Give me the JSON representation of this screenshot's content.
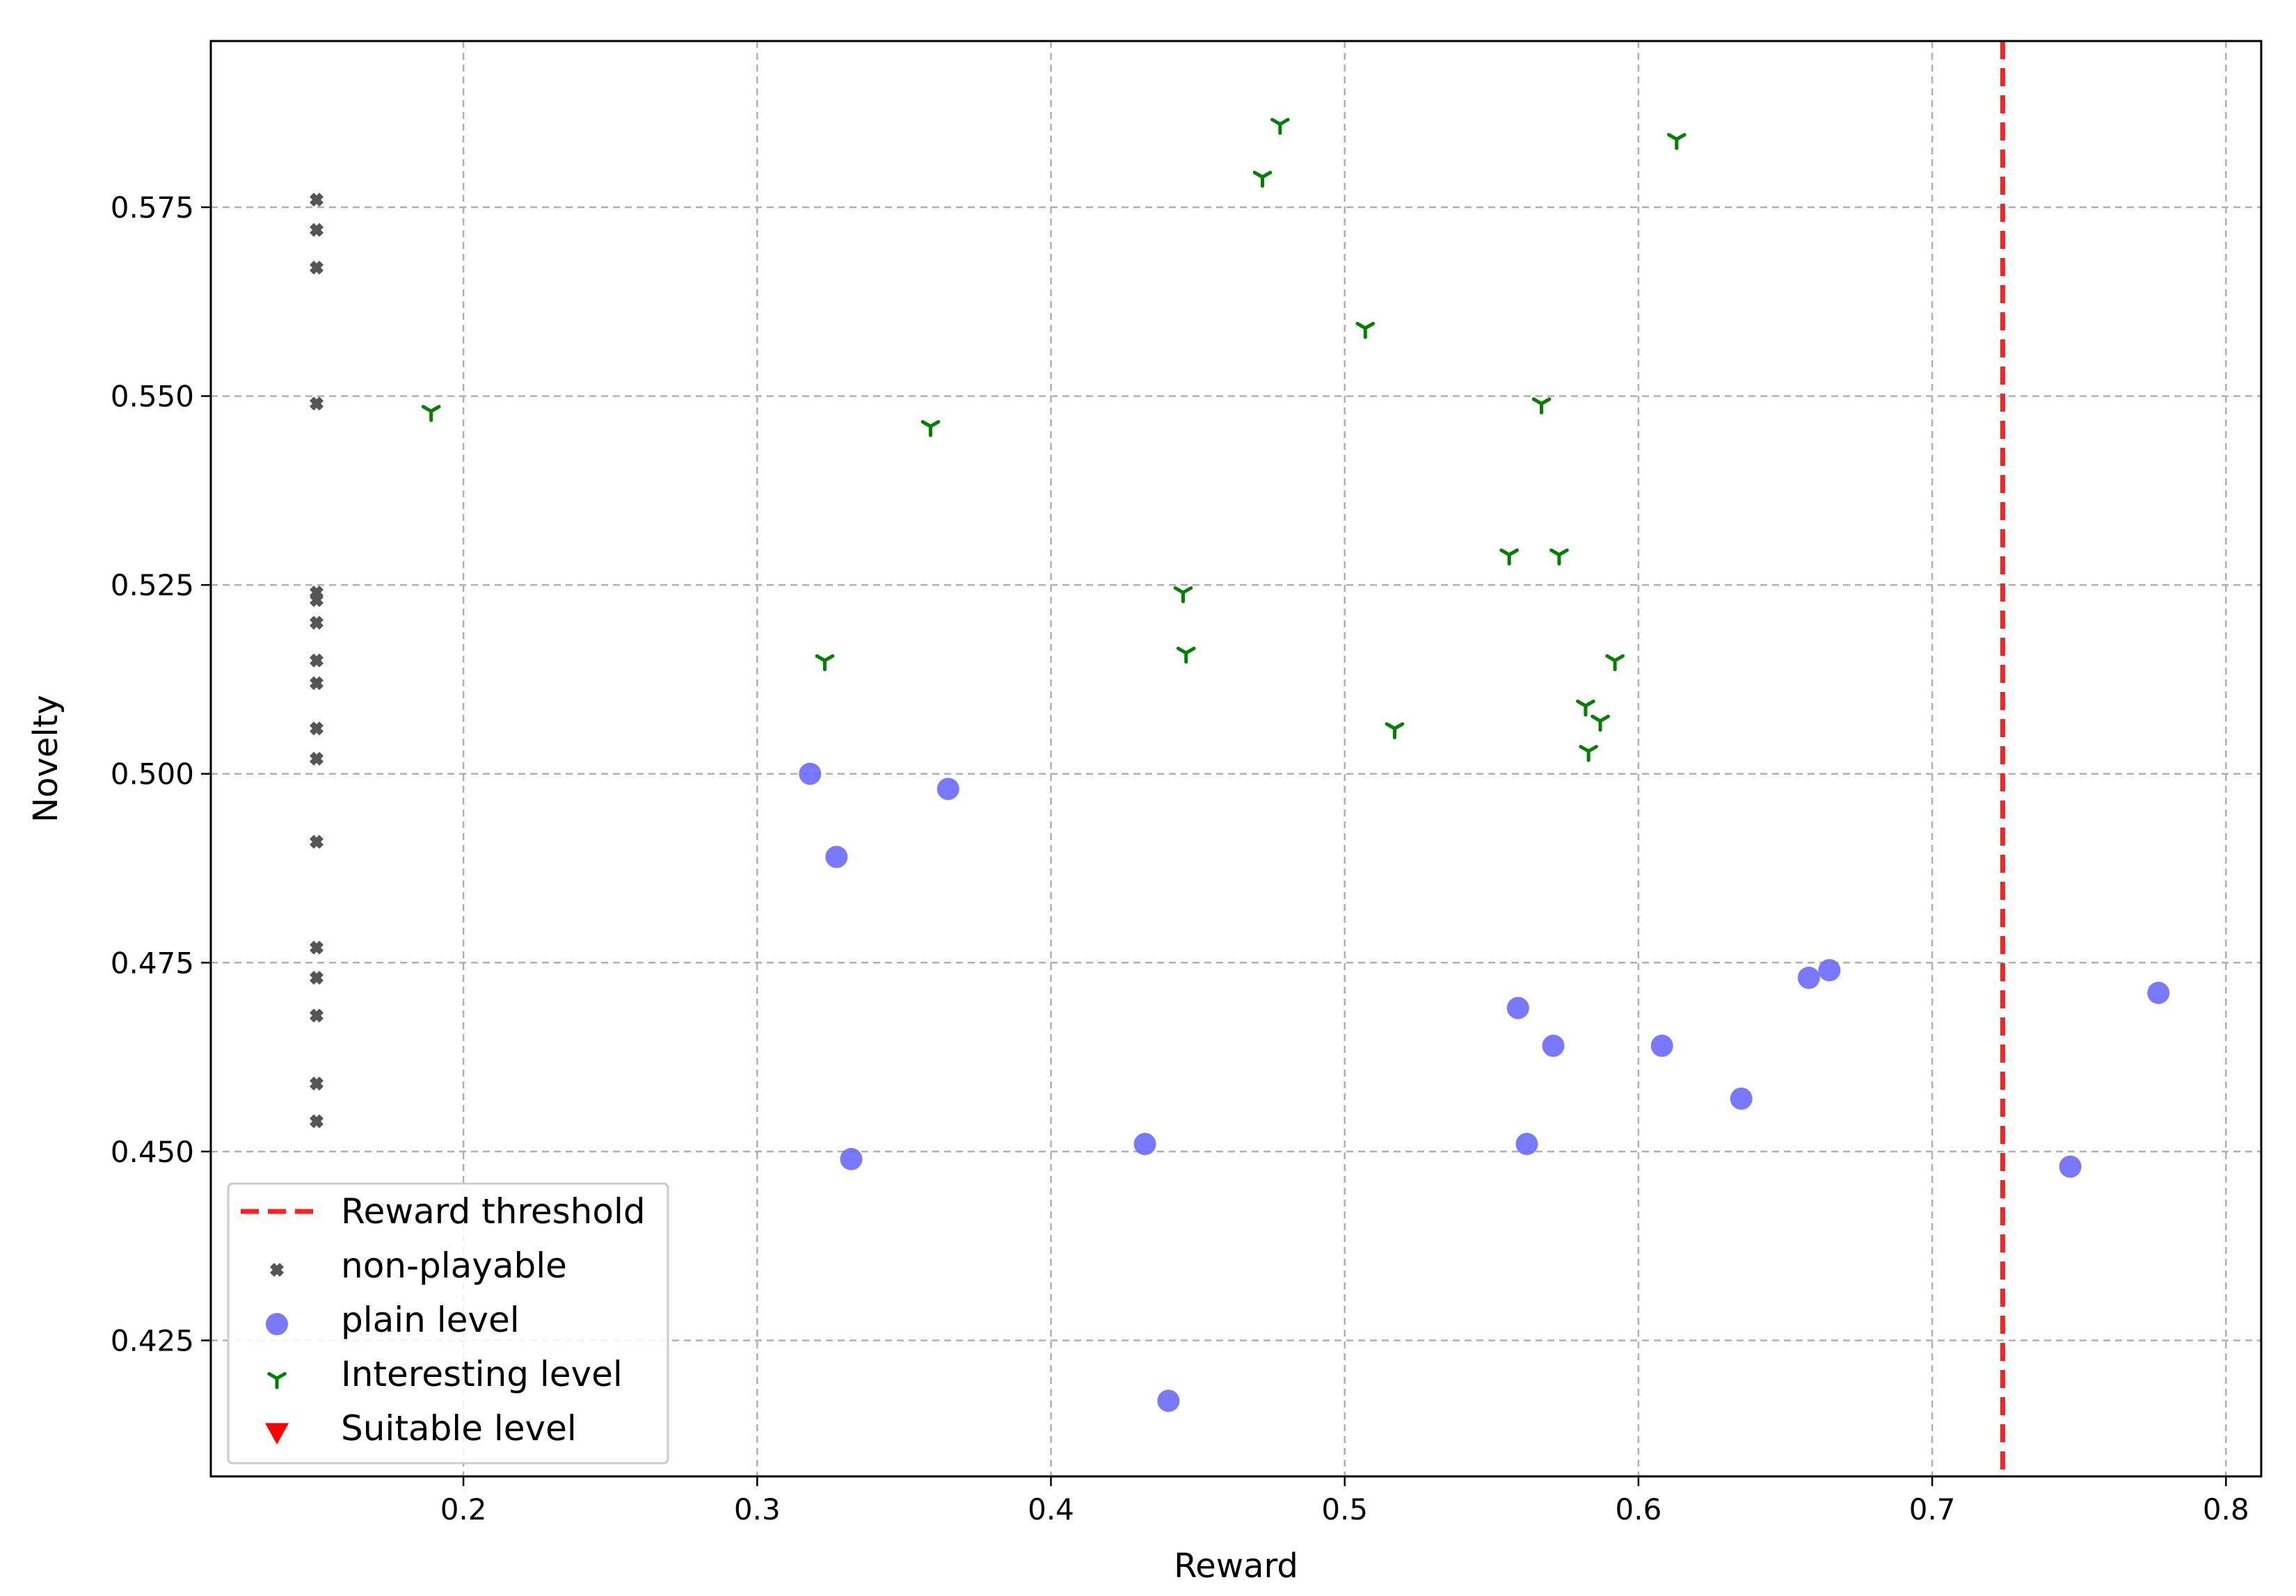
{
  "chart_data": {
    "type": "scatter",
    "title": "",
    "xlabel": "Reward",
    "ylabel": "Novelty",
    "xlim": [
      0.114,
      0.812
    ],
    "ylim": [
      0.407,
      0.597
    ],
    "xticks": [
      "0.2",
      "0.3",
      "0.4",
      "0.5",
      "0.6",
      "0.7",
      "0.8"
    ],
    "yticks": [
      "0.425",
      "0.450",
      "0.475",
      "0.500",
      "0.525",
      "0.550",
      "0.575"
    ],
    "grid": true,
    "legend_position": "bottom-left",
    "threshold": {
      "name": "Reward threshold",
      "x": 0.724,
      "color": "#ff2020"
    },
    "series": [
      {
        "name": "non-playable",
        "marker": "x-filled",
        "color": "#555555",
        "points": [
          [
            0.15,
            0.576
          ],
          [
            0.15,
            0.572
          ],
          [
            0.15,
            0.567
          ],
          [
            0.15,
            0.549
          ],
          [
            0.15,
            0.524
          ],
          [
            0.15,
            0.523
          ],
          [
            0.15,
            0.52
          ],
          [
            0.15,
            0.515
          ],
          [
            0.15,
            0.512
          ],
          [
            0.15,
            0.506
          ],
          [
            0.15,
            0.502
          ],
          [
            0.15,
            0.491
          ],
          [
            0.15,
            0.477
          ],
          [
            0.15,
            0.473
          ],
          [
            0.15,
            0.468
          ],
          [
            0.15,
            0.459
          ],
          [
            0.15,
            0.454
          ]
        ]
      },
      {
        "name": "plain level",
        "marker": "circle",
        "color": "#6a6aff",
        "points": [
          [
            0.318,
            0.5
          ],
          [
            0.365,
            0.498
          ],
          [
            0.327,
            0.489
          ],
          [
            0.332,
            0.449
          ],
          [
            0.432,
            0.451
          ],
          [
            0.44,
            0.417
          ],
          [
            0.559,
            0.469
          ],
          [
            0.571,
            0.464
          ],
          [
            0.562,
            0.451
          ],
          [
            0.608,
            0.464
          ],
          [
            0.635,
            0.457
          ],
          [
            0.658,
            0.473
          ],
          [
            0.665,
            0.474
          ],
          [
            0.747,
            0.448
          ],
          [
            0.777,
            0.471
          ]
        ]
      },
      {
        "name": "Interesting level",
        "marker": "tri-down",
        "color": "#008000",
        "points": [
          [
            0.189,
            0.548
          ],
          [
            0.323,
            0.515
          ],
          [
            0.359,
            0.546
          ],
          [
            0.445,
            0.524
          ],
          [
            0.446,
            0.516
          ],
          [
            0.472,
            0.579
          ],
          [
            0.478,
            0.586
          ],
          [
            0.507,
            0.559
          ],
          [
            0.517,
            0.506
          ],
          [
            0.556,
            0.529
          ],
          [
            0.567,
            0.549
          ],
          [
            0.573,
            0.529
          ],
          [
            0.582,
            0.509
          ],
          [
            0.583,
            0.503
          ],
          [
            0.587,
            0.507
          ],
          [
            0.592,
            0.515
          ],
          [
            0.613,
            0.584
          ]
        ]
      },
      {
        "name": "Suitable level",
        "marker": "triangle-down",
        "color": "#ff0000",
        "points": []
      }
    ]
  }
}
